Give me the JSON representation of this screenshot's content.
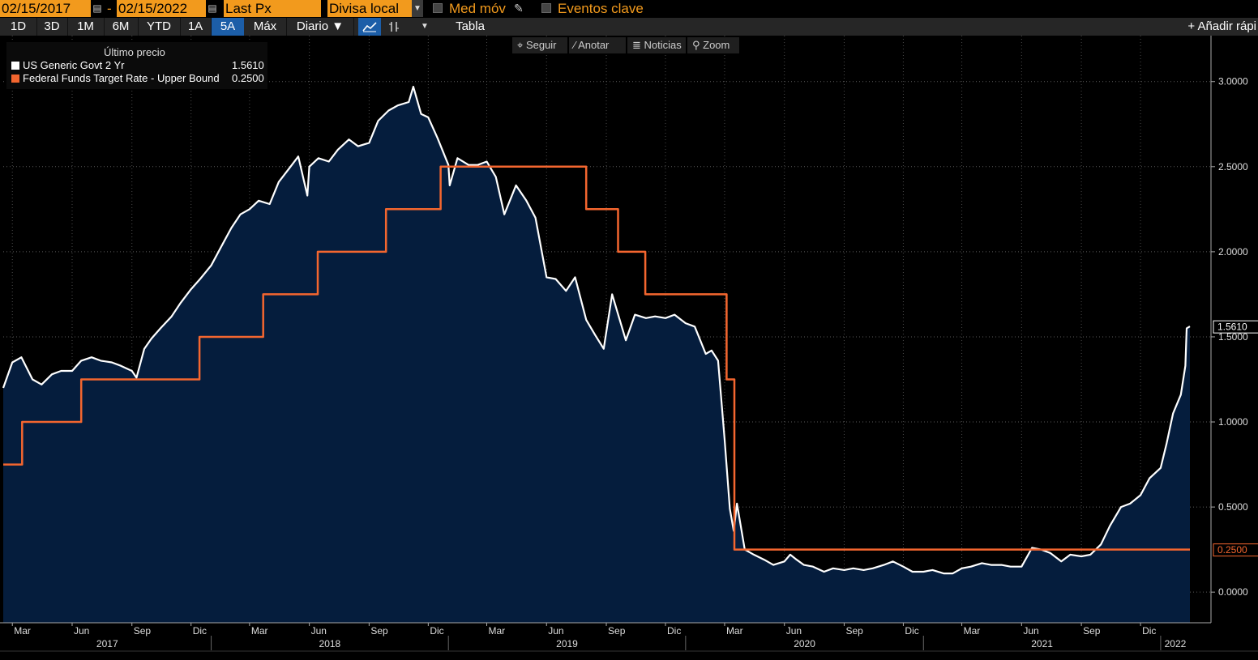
{
  "toolbar": {
    "start_date": "02/15/2017",
    "end_date": "02/15/2022",
    "date_separator": "-",
    "field": "Last Px",
    "currency": "Divisa local",
    "moving_avg_label": "Med móv",
    "key_events_label": "Eventos clave"
  },
  "toolbar2": {
    "tabs": [
      "1D",
      "3D",
      "1M",
      "6M",
      "YTD",
      "1A",
      "5A",
      "Máx"
    ],
    "active_tab": "5A",
    "frequency": "Diario ▼",
    "table_label": "Tabla",
    "add_quick_label": "+ Añadir rápi"
  },
  "mini_tools": {
    "follow": "Seguir",
    "annotate": "Anotar",
    "news": "Noticias",
    "zoom": "Zoom"
  },
  "legend": {
    "title": "Último precio",
    "items": [
      {
        "name": "US Generic Govt 2 Yr",
        "value": "1.5610",
        "color": "#ffffff"
      },
      {
        "name": "Federal Funds Target Rate - Upper Bound",
        "value": "0.2500",
        "color": "#f4662f"
      }
    ]
  },
  "chart_data": {
    "type": "line",
    "x_range": [
      "2017-02-15",
      "2022-02-15"
    ],
    "ylim": [
      -0.18,
      3.27
    ],
    "y_ticks": [
      "0.0000",
      "0.5000",
      "1.0000",
      "1.5000",
      "2.0000",
      "2.5000",
      "3.0000"
    ],
    "y_tick_values": [
      0,
      0.5,
      1.0,
      1.5,
      2.0,
      2.5,
      3.0
    ],
    "month_ticks": [
      {
        "label": "Mar",
        "date": "2017-03-01"
      },
      {
        "label": "Jun",
        "date": "2017-06-01"
      },
      {
        "label": "Sep",
        "date": "2017-09-01"
      },
      {
        "label": "Dic",
        "date": "2017-12-01"
      },
      {
        "label": "Mar",
        "date": "2018-03-01"
      },
      {
        "label": "Jun",
        "date": "2018-06-01"
      },
      {
        "label": "Sep",
        "date": "2018-09-01"
      },
      {
        "label": "Dic",
        "date": "2018-12-01"
      },
      {
        "label": "Mar",
        "date": "2019-03-01"
      },
      {
        "label": "Jun",
        "date": "2019-06-01"
      },
      {
        "label": "Sep",
        "date": "2019-09-01"
      },
      {
        "label": "Dic",
        "date": "2019-12-01"
      },
      {
        "label": "Mar",
        "date": "2020-03-01"
      },
      {
        "label": "Jun",
        "date": "2020-06-01"
      },
      {
        "label": "Sep",
        "date": "2020-09-01"
      },
      {
        "label": "Dic",
        "date": "2020-12-01"
      },
      {
        "label": "Mar",
        "date": "2021-03-01"
      },
      {
        "label": "Jun",
        "date": "2021-06-01"
      },
      {
        "label": "Sep",
        "date": "2021-09-01"
      },
      {
        "label": "Dic",
        "date": "2021-12-01"
      }
    ],
    "year_labels": [
      {
        "label": "2017",
        "from": "2017-02-15",
        "to": "2018-01-01"
      },
      {
        "label": "2018",
        "from": "2018-01-01",
        "to": "2019-01-01"
      },
      {
        "label": "2019",
        "from": "2019-01-01",
        "to": "2020-01-01"
      },
      {
        "label": "2020",
        "from": "2020-01-01",
        "to": "2021-01-01"
      },
      {
        "label": "2021",
        "from": "2021-01-01",
        "to": "2022-01-01"
      },
      {
        "label": "2022",
        "from": "2022-01-01",
        "to": "2022-02-15"
      }
    ],
    "series": [
      {
        "name": "US Generic Govt 2 Yr",
        "color": "#ffffff",
        "fill": "#051d3d",
        "last_label": "1.5610",
        "points": [
          [
            "2017-02-15",
            1.2
          ],
          [
            "2017-03-01",
            1.35
          ],
          [
            "2017-03-15",
            1.38
          ],
          [
            "2017-04-01",
            1.25
          ],
          [
            "2017-04-15",
            1.22
          ],
          [
            "2017-05-01",
            1.28
          ],
          [
            "2017-05-15",
            1.3
          ],
          [
            "2017-06-01",
            1.3
          ],
          [
            "2017-06-15",
            1.36
          ],
          [
            "2017-07-01",
            1.38
          ],
          [
            "2017-07-15",
            1.36
          ],
          [
            "2017-08-01",
            1.35
          ],
          [
            "2017-08-15",
            1.33
          ],
          [
            "2017-09-01",
            1.3
          ],
          [
            "2017-09-08",
            1.26
          ],
          [
            "2017-09-20",
            1.43
          ],
          [
            "2017-10-01",
            1.49
          ],
          [
            "2017-10-15",
            1.55
          ],
          [
            "2017-11-01",
            1.62
          ],
          [
            "2017-11-15",
            1.7
          ],
          [
            "2017-12-01",
            1.78
          ],
          [
            "2017-12-15",
            1.84
          ],
          [
            "2018-01-01",
            1.92
          ],
          [
            "2018-01-15",
            2.02
          ],
          [
            "2018-02-01",
            2.14
          ],
          [
            "2018-02-15",
            2.22
          ],
          [
            "2018-03-01",
            2.25
          ],
          [
            "2018-03-15",
            2.3
          ],
          [
            "2018-04-01",
            2.28
          ],
          [
            "2018-04-15",
            2.41
          ],
          [
            "2018-05-01",
            2.49
          ],
          [
            "2018-05-15",
            2.56
          ],
          [
            "2018-05-29",
            2.33
          ],
          [
            "2018-06-01",
            2.5
          ],
          [
            "2018-06-15",
            2.55
          ],
          [
            "2018-07-01",
            2.53
          ],
          [
            "2018-07-15",
            2.6
          ],
          [
            "2018-08-01",
            2.66
          ],
          [
            "2018-08-15",
            2.62
          ],
          [
            "2018-09-01",
            2.64
          ],
          [
            "2018-09-15",
            2.77
          ],
          [
            "2018-10-01",
            2.83
          ],
          [
            "2018-10-15",
            2.86
          ],
          [
            "2018-11-01",
            2.88
          ],
          [
            "2018-11-08",
            2.97
          ],
          [
            "2018-11-20",
            2.81
          ],
          [
            "2018-12-01",
            2.79
          ],
          [
            "2018-12-15",
            2.67
          ],
          [
            "2019-01-01",
            2.51
          ],
          [
            "2019-01-03",
            2.39
          ],
          [
            "2019-01-15",
            2.55
          ],
          [
            "2019-02-01",
            2.51
          ],
          [
            "2019-02-15",
            2.51
          ],
          [
            "2019-03-01",
            2.53
          ],
          [
            "2019-03-15",
            2.44
          ],
          [
            "2019-03-28",
            2.22
          ],
          [
            "2019-04-15",
            2.39
          ],
          [
            "2019-05-01",
            2.3
          ],
          [
            "2019-05-15",
            2.2
          ],
          [
            "2019-06-01",
            1.85
          ],
          [
            "2019-06-15",
            1.84
          ],
          [
            "2019-07-01",
            1.77
          ],
          [
            "2019-07-15",
            1.85
          ],
          [
            "2019-08-01",
            1.6
          ],
          [
            "2019-08-15",
            1.51
          ],
          [
            "2019-08-28",
            1.43
          ],
          [
            "2019-09-10",
            1.75
          ],
          [
            "2019-09-20",
            1.62
          ],
          [
            "2019-10-01",
            1.48
          ],
          [
            "2019-10-15",
            1.63
          ],
          [
            "2019-11-01",
            1.61
          ],
          [
            "2019-11-15",
            1.62
          ],
          [
            "2019-12-01",
            1.61
          ],
          [
            "2019-12-15",
            1.63
          ],
          [
            "2020-01-01",
            1.58
          ],
          [
            "2020-01-15",
            1.56
          ],
          [
            "2020-02-01",
            1.4
          ],
          [
            "2020-02-10",
            1.42
          ],
          [
            "2020-02-20",
            1.36
          ],
          [
            "2020-03-01",
            0.9
          ],
          [
            "2020-03-09",
            0.49
          ],
          [
            "2020-03-15",
            0.36
          ],
          [
            "2020-03-20",
            0.52
          ],
          [
            "2020-04-01",
            0.25
          ],
          [
            "2020-04-15",
            0.22
          ],
          [
            "2020-05-01",
            0.19
          ],
          [
            "2020-05-15",
            0.16
          ],
          [
            "2020-06-01",
            0.18
          ],
          [
            "2020-06-10",
            0.22
          ],
          [
            "2020-06-20",
            0.19
          ],
          [
            "2020-07-01",
            0.16
          ],
          [
            "2020-07-15",
            0.15
          ],
          [
            "2020-08-01",
            0.12
          ],
          [
            "2020-08-15",
            0.14
          ],
          [
            "2020-09-01",
            0.13
          ],
          [
            "2020-09-15",
            0.14
          ],
          [
            "2020-10-01",
            0.13
          ],
          [
            "2020-10-15",
            0.14
          ],
          [
            "2020-11-01",
            0.16
          ],
          [
            "2020-11-15",
            0.18
          ],
          [
            "2020-12-01",
            0.15
          ],
          [
            "2020-12-15",
            0.12
          ],
          [
            "2021-01-01",
            0.12
          ],
          [
            "2021-01-15",
            0.13
          ],
          [
            "2021-02-01",
            0.11
          ],
          [
            "2021-02-15",
            0.11
          ],
          [
            "2021-03-01",
            0.14
          ],
          [
            "2021-03-15",
            0.15
          ],
          [
            "2021-04-01",
            0.17
          ],
          [
            "2021-04-15",
            0.16
          ],
          [
            "2021-05-01",
            0.16
          ],
          [
            "2021-05-15",
            0.15
          ],
          [
            "2021-06-01",
            0.15
          ],
          [
            "2021-06-17",
            0.26
          ],
          [
            "2021-07-01",
            0.25
          ],
          [
            "2021-07-15",
            0.23
          ],
          [
            "2021-08-01",
            0.18
          ],
          [
            "2021-08-15",
            0.22
          ],
          [
            "2021-09-01",
            0.21
          ],
          [
            "2021-09-15",
            0.22
          ],
          [
            "2021-10-01",
            0.28
          ],
          [
            "2021-10-15",
            0.39
          ],
          [
            "2021-11-01",
            0.5
          ],
          [
            "2021-11-15",
            0.52
          ],
          [
            "2021-12-01",
            0.57
          ],
          [
            "2021-12-15",
            0.67
          ],
          [
            "2022-01-01",
            0.73
          ],
          [
            "2022-01-10",
            0.87
          ],
          [
            "2022-01-20",
            1.05
          ],
          [
            "2022-02-01",
            1.16
          ],
          [
            "2022-02-08",
            1.33
          ],
          [
            "2022-02-10",
            1.55
          ],
          [
            "2022-02-15",
            1.561
          ]
        ]
      },
      {
        "name": "Federal Funds Target Rate - Upper Bound",
        "color": "#f4662f",
        "last_label": "0.2500",
        "step": true,
        "points": [
          [
            "2017-02-15",
            0.75
          ],
          [
            "2017-03-16",
            1.0
          ],
          [
            "2017-06-15",
            1.25
          ],
          [
            "2017-12-14",
            1.5
          ],
          [
            "2018-03-22",
            1.75
          ],
          [
            "2018-06-14",
            2.0
          ],
          [
            "2018-09-27",
            2.25
          ],
          [
            "2018-12-20",
            2.5
          ],
          [
            "2019-08-01",
            2.25
          ],
          [
            "2019-09-19",
            2.0
          ],
          [
            "2019-10-31",
            1.75
          ],
          [
            "2020-03-04",
            1.25
          ],
          [
            "2020-03-16",
            0.25
          ],
          [
            "2022-02-15",
            0.25
          ]
        ]
      }
    ]
  }
}
